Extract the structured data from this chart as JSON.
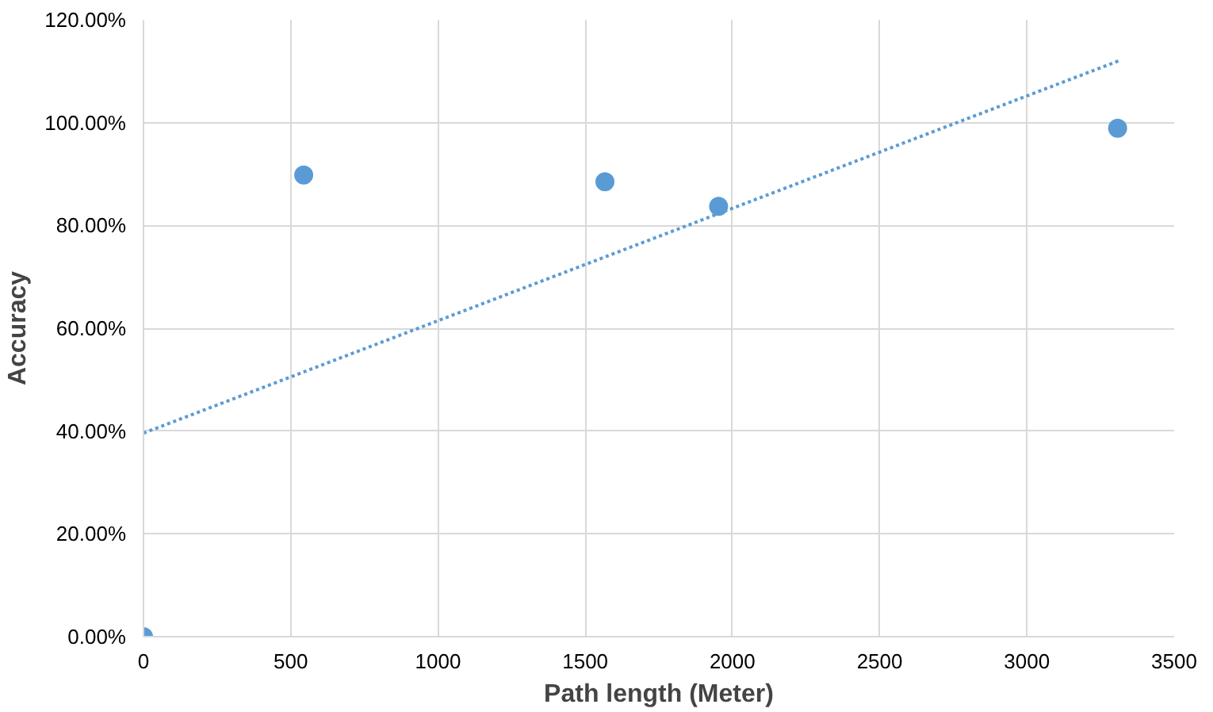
{
  "chart_data": {
    "type": "scatter",
    "xlabel": "Path length (Meter)",
    "ylabel": "Accuracy",
    "series": [
      {
        "color": "#5b9bd5",
        "x": [
          0,
          544,
          1567,
          1953,
          3308
        ],
        "values": [
          0,
          89.8,
          88.5,
          83.7,
          98.9
        ],
        "marker": "circle"
      },
      {
        "type": "line",
        "color": "#5b9bd5",
        "x": [
          0,
          3320
        ],
        "values": [
          39.6,
          112.2
        ],
        "line_style": "dotted"
      }
    ],
    "xlim": [
      0,
      3500
    ],
    "xticks": [
      0,
      500,
      1000,
      1500,
      2000,
      2500,
      3000,
      3500
    ],
    "ylim": [
      0,
      120
    ],
    "yticks": [
      {
        "value": 0,
        "label": "0.00%"
      },
      {
        "value": 20,
        "label": "20.00%"
      },
      {
        "value": 40,
        "label": "40.00%"
      },
      {
        "value": 60,
        "label": "60.00%"
      },
      {
        "value": 80,
        "label": "80.00%"
      },
      {
        "value": 100,
        "label": "100.00%"
      },
      {
        "value": 120,
        "label": "120.00%"
      }
    ],
    "grid": true
  }
}
